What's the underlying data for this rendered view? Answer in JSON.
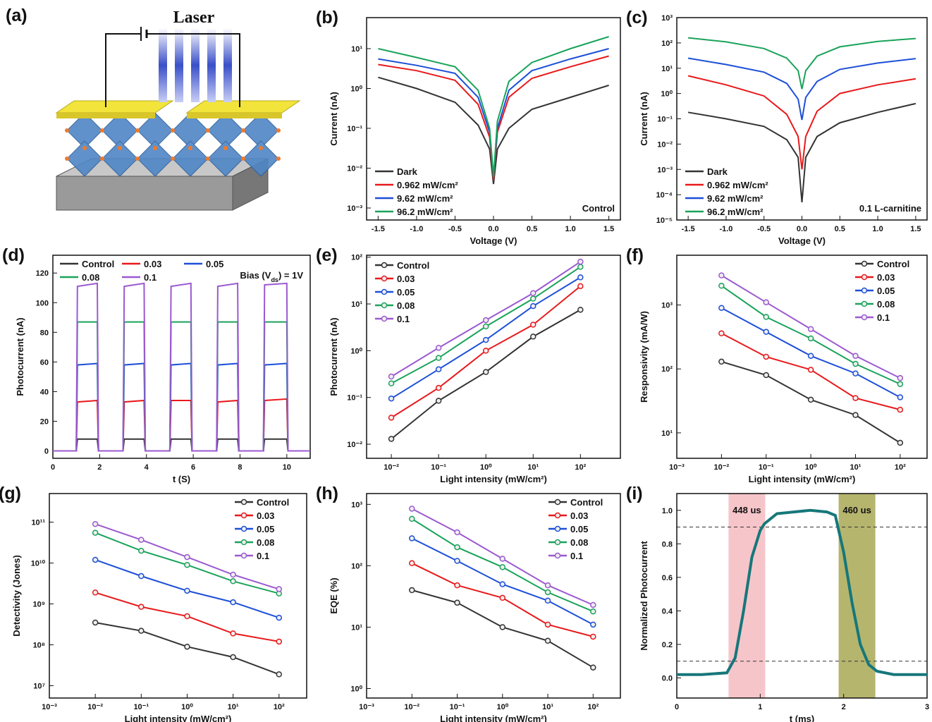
{
  "illustration": {
    "label": "(a)",
    "text": "Laser"
  },
  "chart_data": [
    {
      "type": "line",
      "label": "(b)",
      "x_label": "Voltage (V)",
      "y_label": "Current (nA)",
      "annotation": "Control",
      "legend": "bottom-left",
      "yscale": "log",
      "xlim": [
        -1.65,
        1.65
      ],
      "ylim": [
        0.0005,
        60
      ],
      "xticks": [
        -1.5,
        {
          "value": -1,
          "label": "-1.0"
        },
        -0.5,
        {
          "value": 0,
          "label": "0.0"
        },
        0.5,
        {
          "value": 1,
          "label": "1.0"
        },
        1.5
      ],
      "yticks": [
        {
          "value": 0.001,
          "label": "10⁻³"
        },
        {
          "value": 0.01,
          "label": "10⁻²"
        },
        {
          "value": 0.1,
          "label": "10⁻¹"
        },
        {
          "value": 1,
          "label": "10⁰"
        },
        {
          "value": 10,
          "label": "10¹"
        }
      ],
      "x": [
        -1.5,
        -1,
        -0.5,
        -0.2,
        -0.05,
        0,
        0.05,
        0.2,
        0.5,
        1,
        1.5
      ],
      "series": [
        {
          "name": "Dark",
          "color": "#333333",
          "values": [
            1.9,
            1.0,
            0.45,
            0.12,
            0.03,
            0.004,
            0.03,
            0.1,
            0.3,
            0.6,
            1.2
          ]
        },
        {
          "name": "0.962 mW/cm²",
          "color": "#e8191b",
          "values": [
            4,
            2.8,
            1.6,
            0.4,
            0.06,
            0.005,
            0.08,
            0.6,
            1.8,
            3.5,
            6.5
          ]
        },
        {
          "name": "9.62 mW/cm²",
          "color": "#1d4fd8",
          "values": [
            5.5,
            3.8,
            2.4,
            0.6,
            0.08,
            0.006,
            0.1,
            0.9,
            2.8,
            5.5,
            10
          ]
        },
        {
          "name": "96.2 mW/cm²",
          "color": "#1aa35a",
          "values": [
            10,
            6,
            3.5,
            0.9,
            0.1,
            0.006,
            0.15,
            1.5,
            4.5,
            10,
            20
          ]
        }
      ]
    },
    {
      "type": "line",
      "label": "(c)",
      "x_label": "Voltage (V)",
      "y_label": "Current (nA)",
      "annotation": "0.1 L-carnitine",
      "legend": "bottom-left",
      "yscale": "log",
      "xlim": [
        -1.65,
        1.65
      ],
      "ylim": [
        1e-05,
        1000
      ],
      "xticks": [
        -1.5,
        {
          "value": -1,
          "label": "-1.0"
        },
        -0.5,
        {
          "value": 0,
          "label": "0.0"
        },
        0.5,
        {
          "value": 1,
          "label": "1.0"
        },
        1.5
      ],
      "yticks": [
        {
          "value": 1e-05,
          "label": "10⁻⁵"
        },
        {
          "value": 0.0001,
          "label": "10⁻⁴"
        },
        {
          "value": 0.001,
          "label": "10⁻³"
        },
        {
          "value": 0.01,
          "label": "10⁻²"
        },
        {
          "value": 0.1,
          "label": "10⁻¹"
        },
        {
          "value": 1,
          "label": "10⁰"
        },
        {
          "value": 10,
          "label": "10¹"
        },
        {
          "value": 100,
          "label": "10²"
        },
        {
          "value": 1000,
          "label": "10³"
        }
      ],
      "x": [
        -1.5,
        -1,
        -0.5,
        -0.2,
        -0.05,
        0,
        0.05,
        0.2,
        0.5,
        1,
        1.5
      ],
      "series": [
        {
          "name": "Dark",
          "color": "#333333",
          "values": [
            0.18,
            0.1,
            0.05,
            0.015,
            0.003,
            5e-05,
            0.003,
            0.02,
            0.07,
            0.18,
            0.4
          ]
        },
        {
          "name": "0.962 mW/cm²",
          "color": "#e8191b",
          "values": [
            5,
            2.2,
            0.8,
            0.15,
            0.02,
            0.001,
            0.02,
            0.2,
            1,
            2.2,
            3.8
          ]
        },
        {
          "name": "9.62 mW/cm²",
          "color": "#1d4fd8",
          "values": [
            25,
            14,
            7,
            2.5,
            0.6,
            0.09,
            0.7,
            3,
            9,
            16,
            24
          ]
        },
        {
          "name": "96.2 mW/cm²",
          "color": "#1aa35a",
          "values": [
            160,
            110,
            60,
            25,
            8,
            1.5,
            8,
            30,
            70,
            115,
            150
          ]
        }
      ]
    },
    {
      "type": "line",
      "label": "(d)",
      "x_label": "t (S)",
      "y_label": "Photocurrent (nA)",
      "annotation": [
        "Bias (V",
        "ds",
        ") = 1V"
      ],
      "legend": "top",
      "xlim": [
        0,
        11
      ],
      "ylim": [
        -5,
        132
      ],
      "xticks": [
        0,
        2,
        4,
        6,
        8,
        10
      ],
      "yticks": [
        0,
        20,
        40,
        60,
        80,
        100,
        120
      ],
      "x": [
        0,
        1,
        1.05,
        1.9,
        1.95,
        3,
        3.05,
        3.9,
        3.95,
        5,
        5.05,
        5.9,
        5.95,
        7,
        7.05,
        7.9,
        7.95,
        9,
        9.05,
        10,
        10.05,
        11
      ],
      "series": [
        {
          "name": "Control",
          "color": "#333333",
          "values": [
            0,
            0,
            8,
            8,
            0,
            0,
            8,
            8,
            0,
            0,
            8,
            8,
            0,
            0,
            8,
            8,
            0,
            0,
            8,
            8,
            0,
            0
          ]
        },
        {
          "name": "0.03",
          "color": "#e8191b",
          "values": [
            0,
            0,
            33,
            34,
            0,
            0,
            33,
            34,
            0,
            0,
            34,
            34,
            0,
            0,
            33,
            34,
            0,
            0,
            34,
            35,
            0,
            0
          ]
        },
        {
          "name": "0.05",
          "color": "#1d4fd8",
          "values": [
            0,
            0,
            58,
            59,
            0,
            0,
            58,
            59,
            0,
            0,
            58,
            59,
            0,
            0,
            58,
            59,
            0,
            0,
            58,
            59,
            0,
            0
          ]
        },
        {
          "name": "0.08",
          "color": "#1aa35a",
          "values": [
            0,
            0,
            87,
            87,
            0,
            0,
            87,
            87,
            0,
            0,
            87,
            87,
            0,
            0,
            87,
            87,
            0,
            0,
            87,
            87,
            0,
            0
          ]
        },
        {
          "name": "0.1",
          "color": "#9b59d0",
          "values": [
            0,
            0,
            111,
            113,
            0,
            0,
            111,
            113,
            0,
            0,
            111,
            113,
            0,
            0,
            111,
            113,
            0,
            0,
            112,
            113,
            0,
            0
          ]
        }
      ]
    },
    {
      "type": "line",
      "label": "(e)",
      "x_label": "Light intensity (mW/cm²)",
      "y_label": "Photocurrent (nA)",
      "legend": "top-left",
      "xscale": "log",
      "yscale": "log",
      "markers": true,
      "xlim": [
        0.003,
        700
      ],
      "ylim": [
        0.005,
        110
      ],
      "xticks": [
        {
          "value": 0.01,
          "label": "10⁻²"
        },
        {
          "value": 0.1,
          "label": "10⁻¹"
        },
        {
          "value": 1,
          "label": "10⁰"
        },
        {
          "value": 10,
          "label": "10¹"
        },
        {
          "value": 100,
          "label": "10²"
        }
      ],
      "yticks": [
        {
          "value": 0.01,
          "label": "10⁻²"
        },
        {
          "value": 0.1,
          "label": "10⁻¹"
        },
        {
          "value": 1,
          "label": "10⁰"
        },
        {
          "value": 10,
          "label": "10¹"
        },
        {
          "value": 100,
          "label": "10²"
        }
      ],
      "x": [
        0.01,
        0.1,
        1,
        10,
        100
      ],
      "series": [
        {
          "name": "Control",
          "color": "#333333",
          "values": [
            0.013,
            0.085,
            0.35,
            2,
            7.5
          ]
        },
        {
          "name": "0.03",
          "color": "#e8191b",
          "values": [
            0.037,
            0.16,
            1,
            3.6,
            24
          ]
        },
        {
          "name": "0.05",
          "color": "#1d4fd8",
          "values": [
            0.095,
            0.4,
            1.7,
            9,
            37
          ]
        },
        {
          "name": "0.08",
          "color": "#1aa35a",
          "values": [
            0.2,
            0.7,
            3.3,
            13,
            62
          ]
        },
        {
          "name": "0.1",
          "color": "#9b59d0",
          "values": [
            0.28,
            1.15,
            4.5,
            17,
            80
          ]
        }
      ]
    },
    {
      "type": "line",
      "label": "(f)",
      "x_label": "Light intensity (mW/cm²)",
      "y_label": "Responsivity (mA/W)",
      "legend": "top-right",
      "xscale": "log",
      "yscale": "log",
      "markers": true,
      "xlim": [
        0.001,
        400
      ],
      "ylim": [
        4,
        6000
      ],
      "xticks": [
        {
          "value": 0.001,
          "label": "10⁻³"
        },
        {
          "value": 0.01,
          "label": "10⁻²"
        },
        {
          "value": 0.1,
          "label": "10⁻¹"
        },
        {
          "value": 1,
          "label": "10⁰"
        },
        {
          "value": 10,
          "label": "10¹"
        },
        {
          "value": 100,
          "label": "10²"
        }
      ],
      "yticks": [
        {
          "value": 10,
          "label": "10¹"
        },
        {
          "value": 100,
          "label": "10²"
        },
        {
          "value": 1000,
          "label": "10³"
        }
      ],
      "x": [
        0.01,
        0.1,
        1,
        10,
        100
      ],
      "series": [
        {
          "name": "Control",
          "color": "#333333",
          "values": [
            130,
            80,
            33,
            19,
            7
          ]
        },
        {
          "name": "0.03",
          "color": "#e8191b",
          "values": [
            360,
            155,
            97,
            35,
            23
          ]
        },
        {
          "name": "0.05",
          "color": "#1d4fd8",
          "values": [
            900,
            380,
            160,
            85,
            36
          ]
        },
        {
          "name": "0.08",
          "color": "#1aa35a",
          "values": [
            2000,
            650,
            300,
            120,
            58
          ]
        },
        {
          "name": "0.1",
          "color": "#9b59d0",
          "values": [
            2900,
            1100,
            420,
            160,
            72
          ]
        }
      ]
    },
    {
      "type": "line",
      "label": "(g)",
      "x_label": "Light intensity (mW/cm²)",
      "y_label": "Detectivity (Jones)",
      "legend": "top-right",
      "xscale": "log",
      "yscale": "log",
      "markers": true,
      "xlim": [
        0.001,
        400
      ],
      "ylim": [
        5000000,
        500000000000
      ],
      "xticks": [
        {
          "value": 0.001,
          "label": "10⁻³"
        },
        {
          "value": 0.01,
          "label": "10⁻²"
        },
        {
          "value": 0.1,
          "label": "10⁻¹"
        },
        {
          "value": 1,
          "label": "10⁰"
        },
        {
          "value": 10,
          "label": "10¹"
        },
        {
          "value": 100,
          "label": "10²"
        }
      ],
      "yticks": [
        {
          "value": 10000000,
          "label": "10⁷"
        },
        {
          "value": 100000000,
          "label": "10⁸"
        },
        {
          "value": 1000000000,
          "label": "10⁹"
        },
        {
          "value": 10000000000,
          "label": "10¹⁰"
        },
        {
          "value": 100000000000,
          "label": "10¹¹"
        }
      ],
      "x": [
        0.01,
        0.1,
        1,
        10,
        100
      ],
      "series": [
        {
          "name": "Control",
          "color": "#333333",
          "values": [
            350000000,
            220000000,
            90000000,
            50000000,
            19000000
          ]
        },
        {
          "name": "0.03",
          "color": "#e8191b",
          "values": [
            1900000000,
            850000000,
            500000000,
            190000000,
            120000000
          ]
        },
        {
          "name": "0.05",
          "color": "#1d4fd8",
          "values": [
            12000000000,
            4800000000,
            2100000000,
            1100000000,
            460000000
          ]
        },
        {
          "name": "0.08",
          "color": "#1aa35a",
          "values": [
            55000000000,
            20000000000,
            9000000000,
            3600000000,
            1800000000
          ]
        },
        {
          "name": "0.1",
          "color": "#9b59d0",
          "values": [
            90000000000,
            37000000000,
            14000000000,
            5200000000,
            2300000000
          ]
        }
      ]
    },
    {
      "type": "line",
      "label": "(h)",
      "x_label": "Light intensity (mW/cm²)",
      "y_label": "EQE (%)",
      "legend": "top-right",
      "xscale": "log",
      "yscale": "log",
      "markers": true,
      "xlim": [
        0.001,
        400
      ],
      "ylim": [
        0.7,
        1500
      ],
      "xticks": [
        {
          "value": 0.001,
          "label": "10⁻³"
        },
        {
          "value": 0.01,
          "label": "10⁻²"
        },
        {
          "value": 0.1,
          "label": "10⁻¹"
        },
        {
          "value": 1,
          "label": "10⁰"
        },
        {
          "value": 10,
          "label": "10¹"
        },
        {
          "value": 100,
          "label": "10²"
        }
      ],
      "yticks": [
        {
          "value": 1,
          "label": "10⁰"
        },
        {
          "value": 10,
          "label": "10¹"
        },
        {
          "value": 100,
          "label": "10²"
        },
        {
          "value": 1000,
          "label": "10³"
        }
      ],
      "x": [
        0.01,
        0.1,
        1,
        10,
        100
      ],
      "series": [
        {
          "name": "Control",
          "color": "#333333",
          "values": [
            40,
            25,
            10,
            6,
            2.2
          ]
        },
        {
          "name": "0.03",
          "color": "#e8191b",
          "values": [
            110,
            48,
            30,
            11,
            7
          ]
        },
        {
          "name": "0.05",
          "color": "#1d4fd8",
          "values": [
            280,
            120,
            50,
            27,
            11
          ]
        },
        {
          "name": "0.08",
          "color": "#1aa35a",
          "values": [
            580,
            200,
            95,
            37,
            18
          ]
        },
        {
          "name": "0.1",
          "color": "#9b59d0",
          "values": [
            850,
            350,
            130,
            48,
            23
          ]
        }
      ]
    },
    {
      "type": "line",
      "label": "(i)",
      "x_label": "t (ms)",
      "y_label": "Normalized Photocurrent",
      "xlim": [
        0,
        3
      ],
      "ylim": [
        -0.12,
        1.1
      ],
      "xticks": [
        0,
        1,
        2,
        3
      ],
      "yticks": [
        {
          "value": 0,
          "label": "0.0"
        },
        0.2,
        0.4,
        0.6,
        0.8,
        {
          "value": 1,
          "label": "1.0"
        }
      ],
      "hlines": [
        0.9,
        0.1
      ],
      "spans": [
        {
          "x": [
            0.62,
            1.06
          ],
          "label": "448 us",
          "color": "#f4b6bd"
        },
        {
          "x": [
            1.94,
            2.38
          ],
          "label": "460 us",
          "color": "#a4a24a"
        }
      ],
      "x": [
        0,
        0.3,
        0.6,
        0.7,
        0.8,
        0.9,
        1.0,
        1.05,
        1.2,
        1.4,
        1.6,
        1.8,
        1.9,
        2.0,
        2.1,
        2.2,
        2.3,
        2.4,
        2.6,
        3.0
      ],
      "series": [
        {
          "color": "#16777a",
          "values": [
            0.02,
            0.02,
            0.03,
            0.12,
            0.4,
            0.72,
            0.88,
            0.92,
            0.98,
            0.99,
            1.0,
            0.99,
            0.97,
            0.75,
            0.45,
            0.2,
            0.08,
            0.04,
            0.02,
            0.02
          ]
        }
      ]
    }
  ]
}
